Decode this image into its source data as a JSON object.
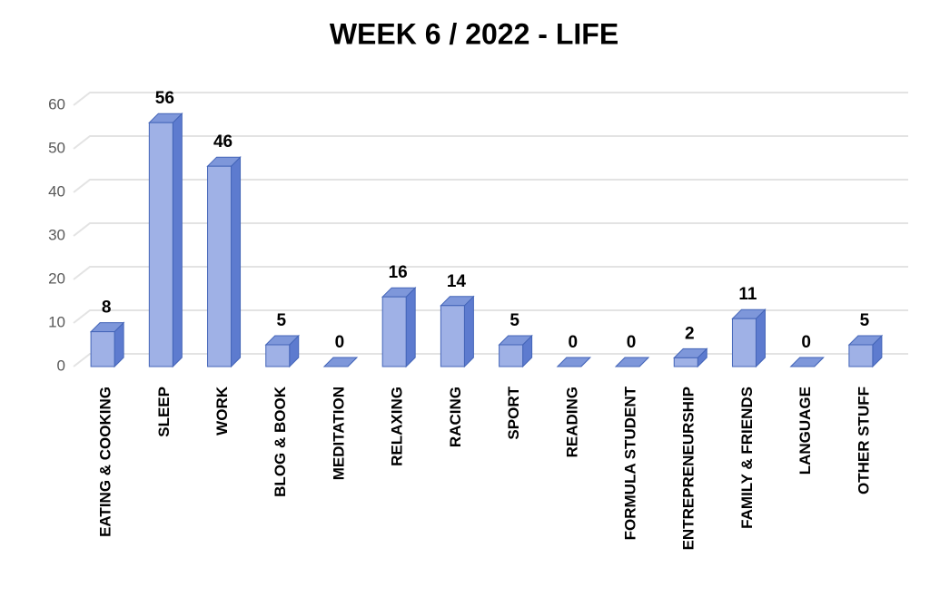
{
  "chart_data": {
    "type": "bar3d",
    "title": "WEEK 6  / 2022  - LIFE",
    "categories": [
      "EATING & COOKING",
      "SLEEP",
      "WORK",
      "BLOG & BOOK",
      "MEDITATION",
      "RELAXING",
      "RACING",
      "SPORT",
      "READING",
      "FORMULA STUDENT",
      "ENTREPRENEURSHIP",
      "FAMILY & FRIENDS",
      "LANGUAGE",
      "OTHER STUFF"
    ],
    "values": [
      8,
      56,
      46,
      5,
      0,
      16,
      14,
      5,
      0,
      0,
      2,
      11,
      0,
      5
    ],
    "color": "#9fb1e6",
    "ylim": [
      0,
      60
    ],
    "yticks": [
      0,
      10,
      20,
      30,
      40,
      50,
      60
    ],
    "grid": true
  }
}
